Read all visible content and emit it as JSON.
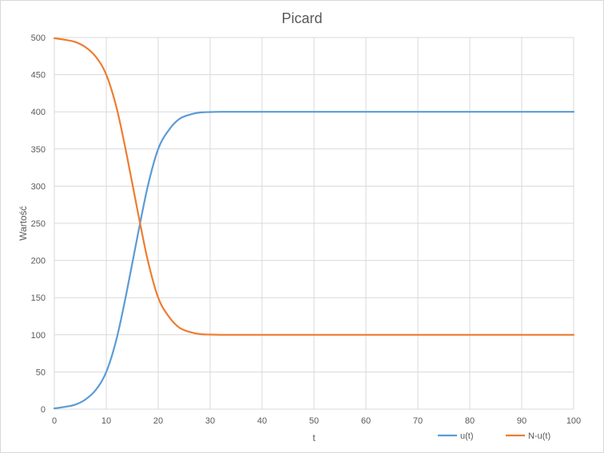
{
  "chart_data": {
    "type": "line",
    "title": "Picard",
    "xlabel": "t",
    "ylabel": "Wartość",
    "xlim": [
      0,
      100
    ],
    "ylim": [
      0,
      500
    ],
    "x_ticks": [
      0,
      10,
      20,
      30,
      40,
      50,
      60,
      70,
      80,
      90,
      100
    ],
    "y_ticks": [
      0,
      50,
      100,
      150,
      200,
      250,
      300,
      350,
      400,
      450,
      500
    ],
    "grid": true,
    "legend_position": "bottom-right",
    "series": [
      {
        "name": "u(t)",
        "color": "#5B9BD5",
        "x": [
          0,
          2,
          4,
          6,
          8,
          10,
          12,
          14,
          16,
          18,
          20,
          22,
          24,
          26,
          28,
          30,
          32,
          36,
          40,
          50,
          60,
          70,
          80,
          90,
          100
        ],
        "y": [
          1,
          3,
          6,
          13,
          26,
          50,
          95,
          160,
          232,
          300,
          350,
          375,
          390,
          396,
          399,
          399.7,
          400,
          400,
          400,
          400,
          400,
          400,
          400,
          400,
          400
        ]
      },
      {
        "name": "N-u(t)",
        "color": "#ED7D31",
        "x": [
          0,
          2,
          4,
          6,
          8,
          10,
          12,
          14,
          16,
          18,
          20,
          22,
          24,
          26,
          28,
          30,
          32,
          36,
          40,
          50,
          60,
          70,
          80,
          90,
          100
        ],
        "y": [
          499,
          497,
          494,
          487,
          474,
          450,
          405,
          340,
          268,
          200,
          150,
          125,
          110,
          104,
          101,
          100.3,
          100,
          100,
          100,
          100,
          100,
          100,
          100,
          100,
          100
        ]
      }
    ]
  }
}
